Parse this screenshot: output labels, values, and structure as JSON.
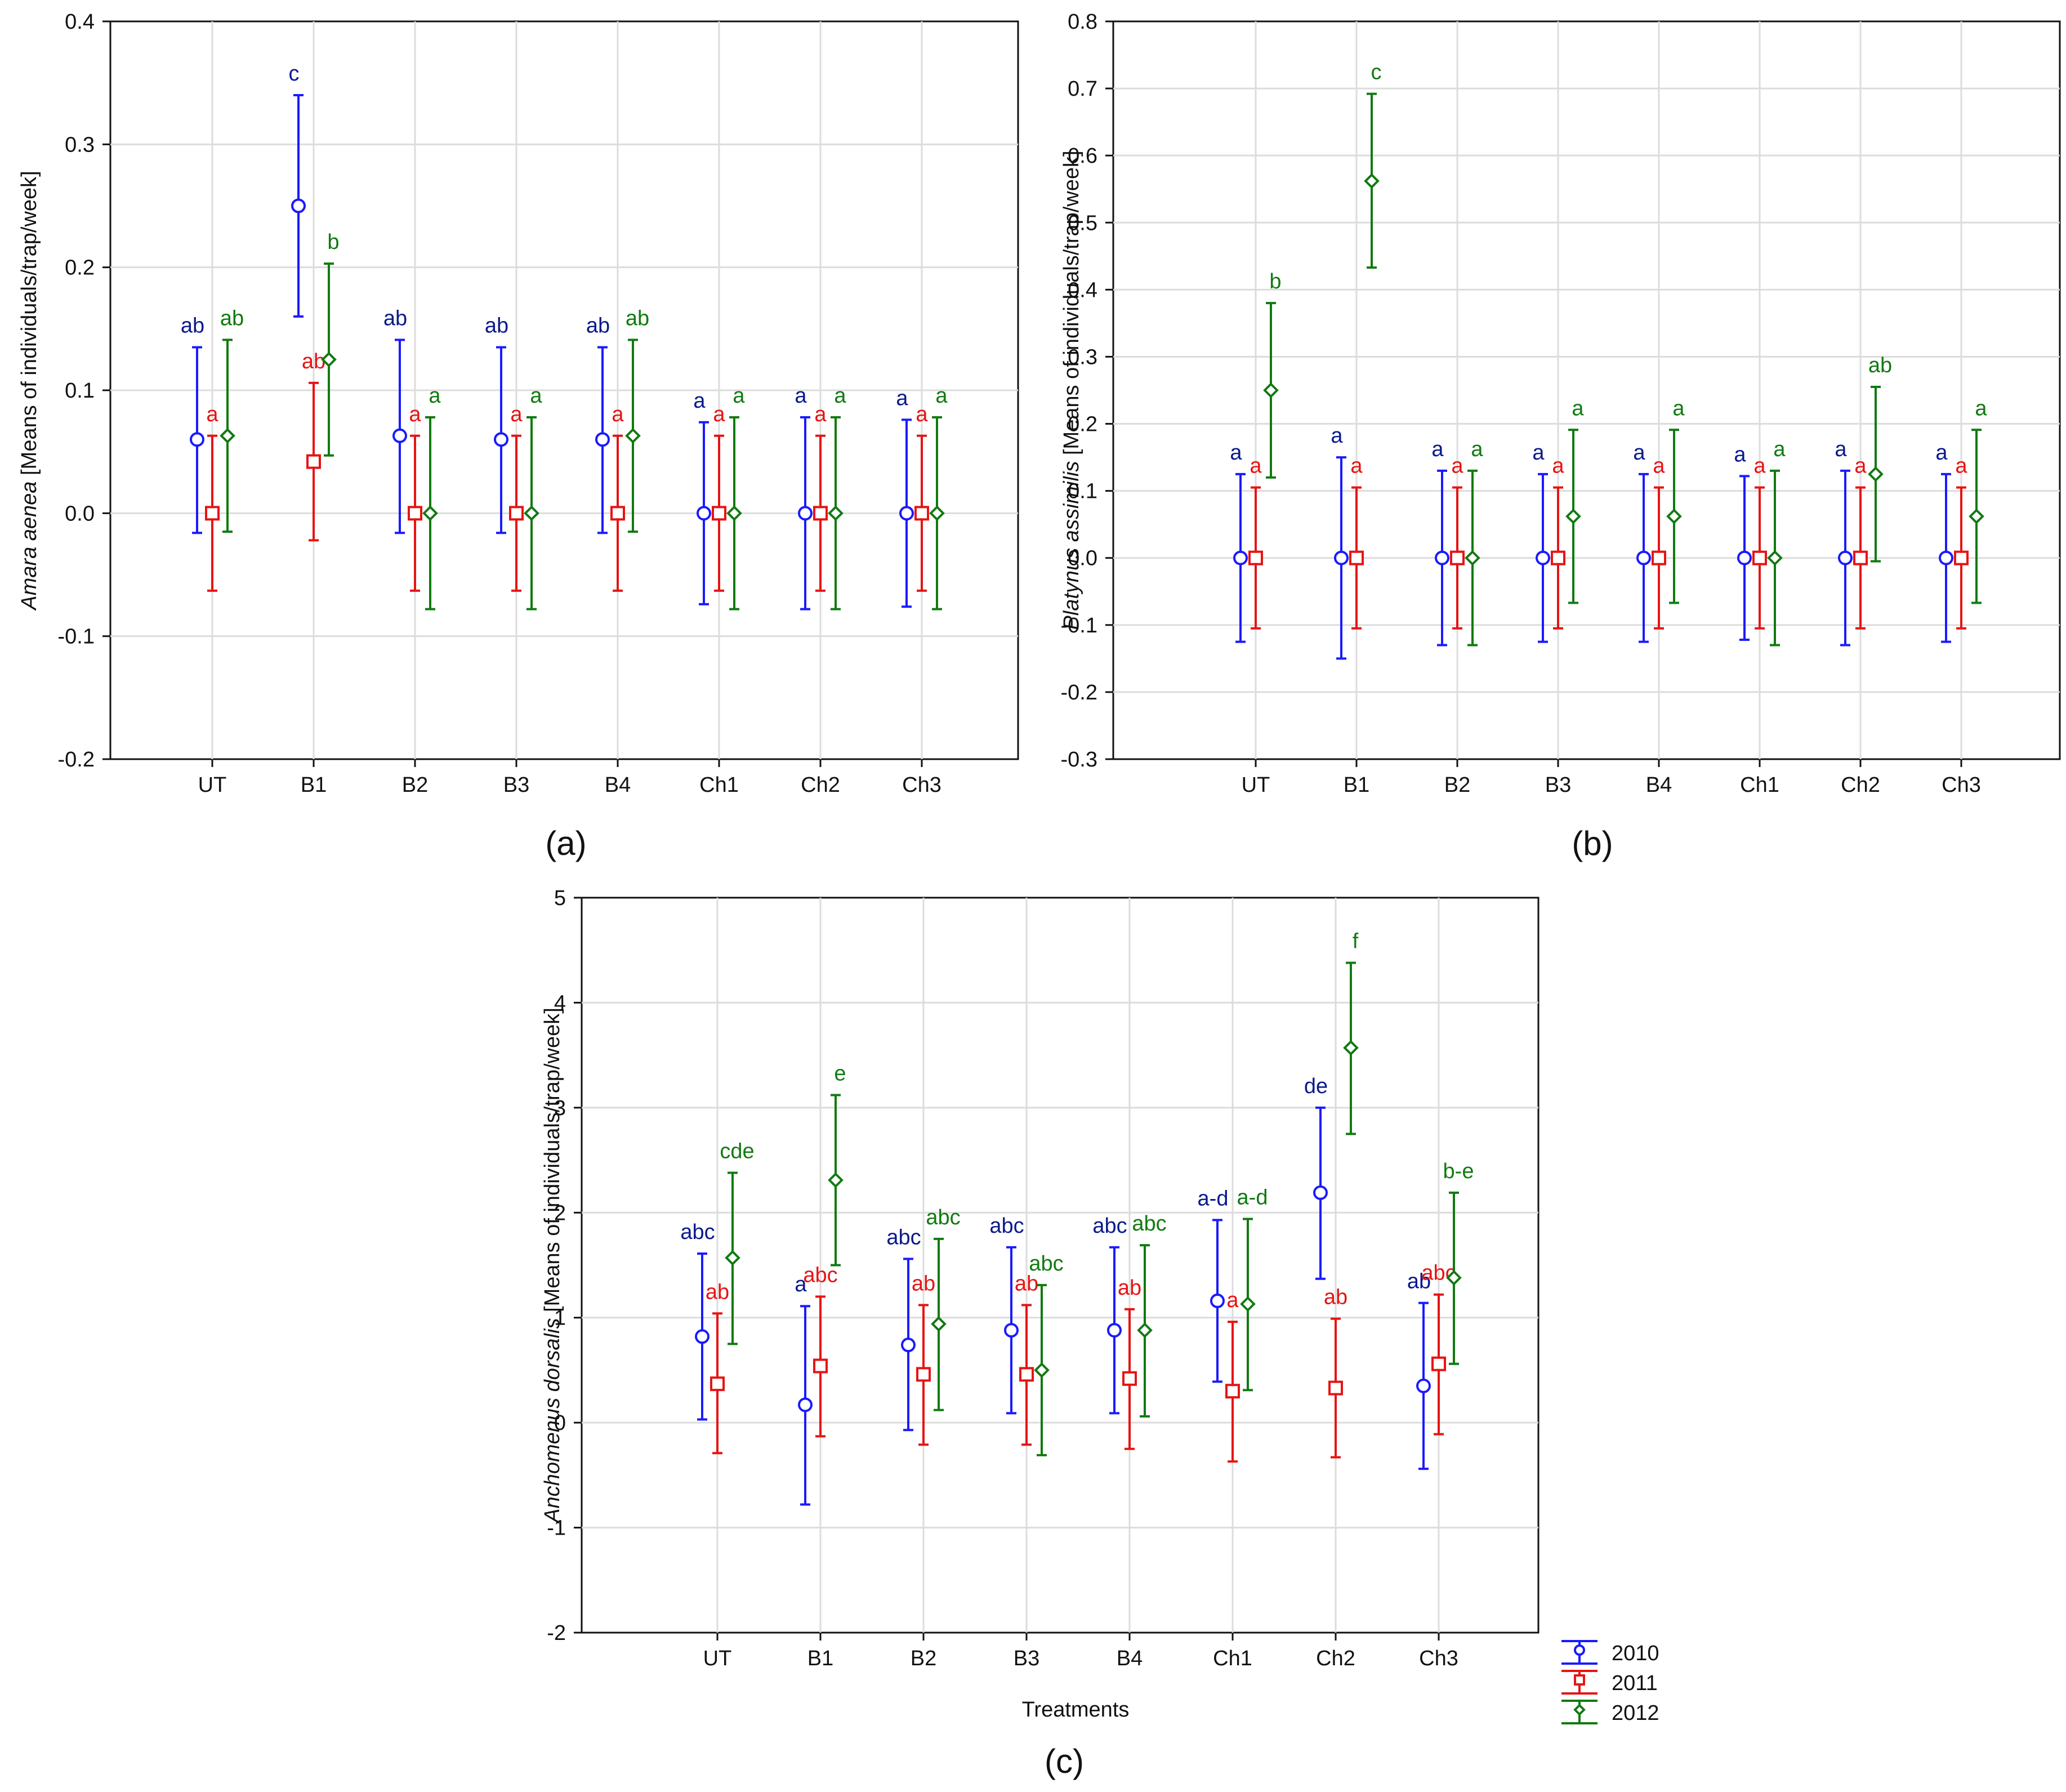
{
  "series_colors": {
    "2010": "#1a1aff",
    "2011": "#e61414",
    "2012": "#117a11"
  },
  "letter_colors": {
    "2010": "#0a1a8c",
    "2011": "#e61414",
    "2012": "#117a11"
  },
  "legend": {
    "entries": [
      {
        "label": "2010",
        "key": "2010",
        "marker": "circle"
      },
      {
        "label": "2011",
        "key": "2011",
        "marker": "square"
      },
      {
        "label": "2012",
        "key": "2012",
        "marker": "diamond"
      }
    ]
  },
  "chart_data": [
    {
      "id": "a",
      "panel_label": "(a)",
      "type": "scatter",
      "ylabel_species": "Amara aenea",
      "ylabel_rest": " [Means of individuals/trap/week]",
      "xlabel": "",
      "categories": [
        "UT",
        "B1",
        "B2",
        "B3",
        "B4",
        "Ch1",
        "Ch2",
        "Ch3"
      ],
      "ylim": [
        -0.2,
        0.4
      ],
      "yticks": [
        -0.2,
        -0.1,
        0.0,
        0.1,
        0.2,
        0.3,
        0.4
      ],
      "ytick_labels": [
        "-0.2",
        "-0.1",
        "0.0",
        "0.1",
        "0.2",
        "0.3",
        "0.4"
      ],
      "grid": true,
      "series": [
        {
          "name": "2010",
          "mean": [
            0.06,
            0.25,
            0.063,
            0.06,
            0.06,
            0.0,
            0.0,
            0.0
          ],
          "lower": [
            -0.016,
            0.16,
            -0.016,
            -0.016,
            -0.016,
            -0.074,
            -0.078,
            -0.076
          ],
          "upper": [
            0.135,
            0.34,
            0.141,
            0.135,
            0.135,
            0.074,
            0.078,
            0.076
          ],
          "letters": [
            "ab",
            "c",
            "ab",
            "ab",
            "ab",
            "a",
            "a",
            "a"
          ]
        },
        {
          "name": "2011",
          "mean": [
            0.0,
            0.042,
            0.0,
            0.0,
            0.0,
            0.0,
            0.0,
            0.0
          ],
          "lower": [
            -0.063,
            -0.022,
            -0.063,
            -0.063,
            -0.063,
            -0.063,
            -0.063,
            -0.063
          ],
          "upper": [
            0.063,
            0.106,
            0.063,
            0.063,
            0.063,
            0.063,
            0.063,
            0.063
          ],
          "letters": [
            "a",
            "ab",
            "a",
            "a",
            "a",
            "a",
            "a",
            "a"
          ]
        },
        {
          "name": "2012",
          "mean": [
            0.063,
            0.125,
            0.0,
            0.0,
            0.063,
            0.0,
            0.0,
            0.0
          ],
          "lower": [
            -0.015,
            0.047,
            -0.078,
            -0.078,
            -0.015,
            -0.078,
            -0.078,
            -0.078
          ],
          "upper": [
            0.141,
            0.203,
            0.078,
            0.078,
            0.141,
            0.078,
            0.078,
            0.078
          ],
          "letters": [
            "ab",
            "b",
            "a",
            "a",
            "ab",
            "a",
            "a",
            "a"
          ]
        }
      ]
    },
    {
      "id": "b",
      "panel_label": "(b)",
      "type": "scatter",
      "ylabel_species": "Platynus assimilis",
      "ylabel_rest": " [Means of individuals/trap/week]",
      "xlabel": "",
      "categories": [
        "UT",
        "B1",
        "B2",
        "B3",
        "B4",
        "Ch1",
        "Ch2",
        "Ch3"
      ],
      "ylim": [
        -0.3,
        0.8
      ],
      "yticks": [
        -0.3,
        -0.2,
        -0.1,
        0.0,
        0.1,
        0.2,
        0.3,
        0.4,
        0.5,
        0.6,
        0.7,
        0.8
      ],
      "ytick_labels": [
        "-0.3",
        "-0.2",
        "-0.1",
        "0.0",
        "0.1",
        "0.2",
        "0.3",
        "0.4",
        "0.5",
        "0.6",
        "0.7",
        "0.8"
      ],
      "grid": true,
      "series": [
        {
          "name": "2010",
          "mean": [
            0.0,
            0.0,
            0.0,
            0.0,
            0.0,
            0.0,
            0.0,
            0.0
          ],
          "lower": [
            -0.125,
            -0.15,
            -0.13,
            -0.125,
            -0.125,
            -0.122,
            -0.13,
            -0.125
          ],
          "upper": [
            0.125,
            0.15,
            0.13,
            0.125,
            0.125,
            0.122,
            0.13,
            0.125
          ],
          "letters": [
            "a",
            "a",
            "a",
            "a",
            "a",
            "a",
            "a",
            "a"
          ]
        },
        {
          "name": "2011",
          "mean": [
            0.0,
            0.0,
            0.0,
            0.0,
            0.0,
            0.0,
            0.0,
            0.0
          ],
          "lower": [
            -0.105,
            -0.105,
            -0.105,
            -0.105,
            -0.105,
            -0.105,
            -0.105,
            -0.105
          ],
          "upper": [
            0.105,
            0.105,
            0.105,
            0.105,
            0.105,
            0.105,
            0.105,
            0.105
          ],
          "letters": [
            "a",
            "a",
            "a",
            "a",
            "a",
            "a",
            "a",
            "a"
          ]
        },
        {
          "name": "2012",
          "mean": [
            0.25,
            0.562,
            0.0,
            0.062,
            0.062,
            0.0,
            0.125,
            0.062
          ],
          "lower": [
            0.12,
            0.433,
            -0.13,
            -0.067,
            -0.067,
            -0.13,
            -0.005,
            -0.067
          ],
          "upper": [
            0.38,
            0.692,
            0.13,
            0.191,
            0.191,
            0.13,
            0.255,
            0.191
          ],
          "letters": [
            "b",
            "c",
            "a",
            "a",
            "a",
            "a",
            "ab",
            "a"
          ]
        }
      ]
    },
    {
      "id": "c",
      "panel_label": "(c)",
      "type": "scatter",
      "ylabel_species": "Anchomenus dorsalis",
      "ylabel_rest": " [Means of individuals/trap/week]",
      "xlabel": "Treatments",
      "categories": [
        "UT",
        "B1",
        "B2",
        "B3",
        "B4",
        "Ch1",
        "Ch2",
        "Ch3"
      ],
      "ylim": [
        -2,
        5
      ],
      "yticks": [
        -2,
        -1,
        0,
        1,
        2,
        3,
        4,
        5
      ],
      "ytick_labels": [
        "-2",
        "-1",
        "0",
        "1",
        "2",
        "3",
        "4",
        "5"
      ],
      "grid": true,
      "series": [
        {
          "name": "2010",
          "mean": [
            0.82,
            0.17,
            0.74,
            0.88,
            0.88,
            1.16,
            2.19,
            0.35
          ],
          "lower": [
            0.03,
            -0.78,
            -0.07,
            0.09,
            0.09,
            0.39,
            1.37,
            -0.44
          ],
          "upper": [
            1.61,
            1.11,
            1.56,
            1.67,
            1.67,
            1.93,
            3.0,
            1.14
          ],
          "letters": [
            "abc",
            "a",
            "abc",
            "abc",
            "abc",
            "a-d",
            "de",
            "ab"
          ]
        },
        {
          "name": "2011",
          "mean": [
            0.37,
            0.54,
            0.46,
            0.46,
            0.42,
            0.3,
            0.33,
            0.56
          ],
          "lower": [
            -0.29,
            -0.13,
            -0.21,
            -0.21,
            -0.25,
            -0.37,
            -0.33,
            -0.11
          ],
          "upper": [
            1.04,
            1.2,
            1.12,
            1.12,
            1.08,
            0.96,
            0.99,
            1.22
          ],
          "letters": [
            "ab",
            "abc",
            "ab",
            "ab",
            "ab",
            "a",
            "ab",
            "abc"
          ]
        },
        {
          "name": "2012",
          "mean": [
            1.57,
            2.31,
            0.94,
            0.5,
            0.88,
            1.13,
            3.57,
            1.38
          ],
          "lower": [
            0.75,
            1.5,
            0.12,
            -0.31,
            0.06,
            0.31,
            2.75,
            0.56
          ],
          "upper": [
            2.38,
            3.12,
            1.75,
            1.31,
            1.69,
            1.94,
            4.38,
            2.19
          ],
          "letters": [
            "cde",
            "e",
            "abc",
            "abc",
            "abc",
            "a-d",
            "f",
            "b-e"
          ]
        }
      ]
    }
  ]
}
